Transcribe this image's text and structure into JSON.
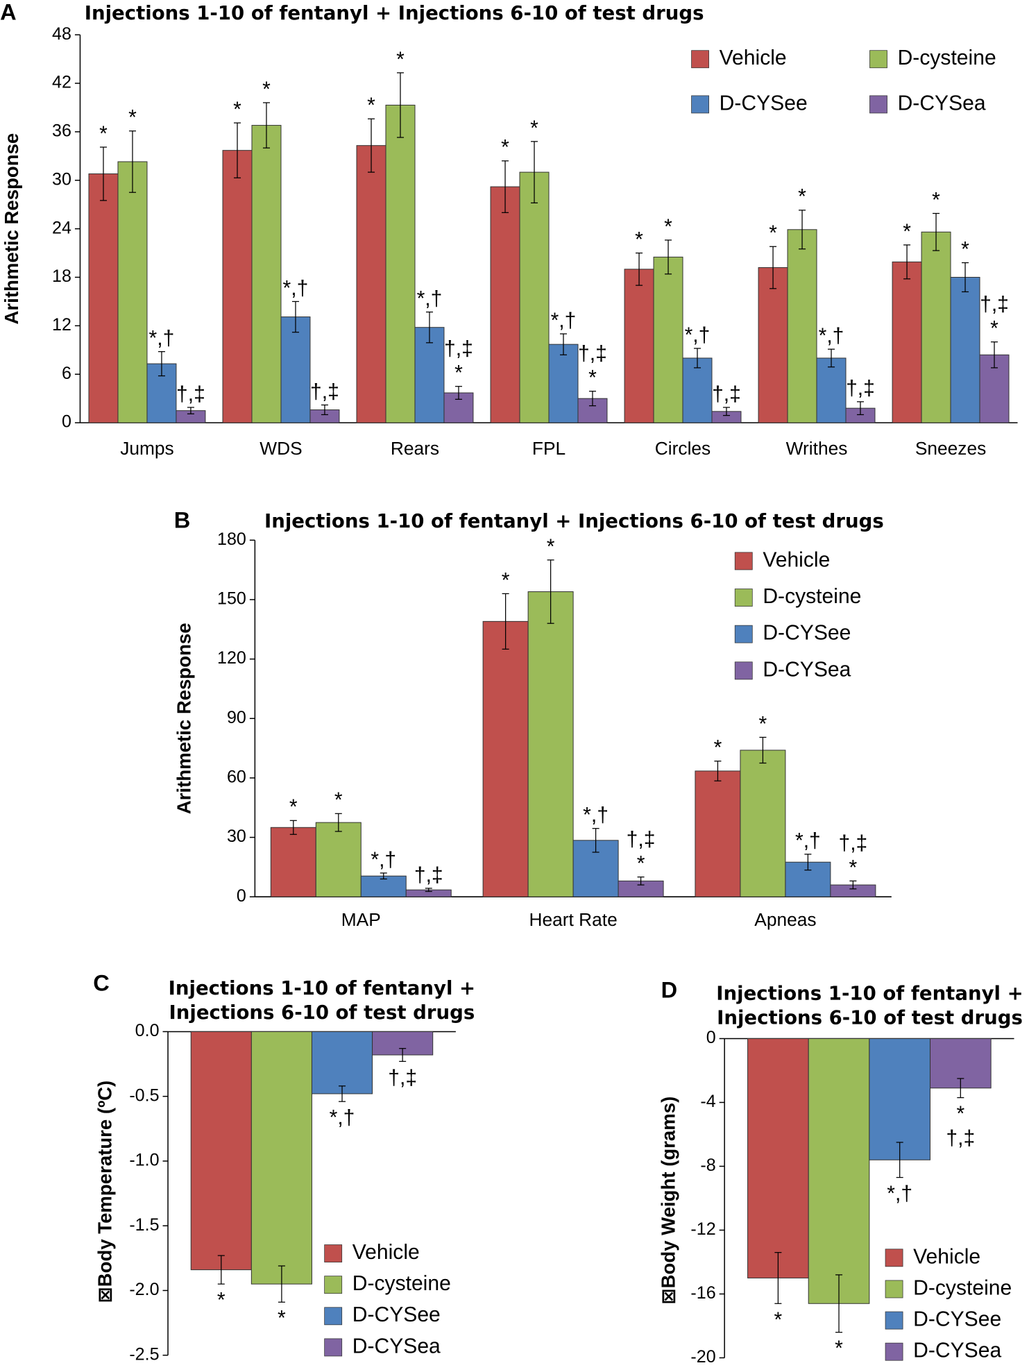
{
  "chart_data": [
    {
      "type": "bar",
      "panel_label": "A",
      "title": [
        "Injections 1-10 of fentanyl + Injections 6-10 of test drugs"
      ],
      "y_label": "Arithmetic Response",
      "categories": [
        "Jumps",
        "WDS",
        "Rears",
        "FPL",
        "Circles",
        "Writhes",
        "Sneezes"
      ],
      "ylim": [
        0,
        48
      ],
      "yticks": [
        0,
        6,
        12,
        18,
        24,
        30,
        36,
        42,
        48
      ],
      "legend": "upper right",
      "legend_columns": 2,
      "series": [
        {
          "name": "Vehicle",
          "color": "#c0504d",
          "values": [
            30.8,
            33.7,
            34.3,
            29.2,
            19.0,
            19.2,
            19.9
          ],
          "errors": [
            3.3,
            3.4,
            3.3,
            3.2,
            2.0,
            2.6,
            2.1
          ],
          "annotations": [
            [
              "*"
            ],
            [
              "*"
            ],
            [
              "*"
            ],
            [
              "*"
            ],
            [
              "*"
            ],
            [
              "*"
            ],
            [
              "*"
            ]
          ]
        },
        {
          "name": "D-cysteine",
          "color": "#9bbb59",
          "values": [
            32.3,
            36.8,
            39.3,
            31.0,
            20.5,
            23.9,
            23.6
          ],
          "errors": [
            3.8,
            2.8,
            4.0,
            3.8,
            2.1,
            2.4,
            2.3
          ],
          "annotations": [
            [
              "*"
            ],
            [
              "*"
            ],
            [
              "*"
            ],
            [
              "*"
            ],
            [
              "*"
            ],
            [
              "*"
            ],
            [
              "*"
            ]
          ]
        },
        {
          "name": "D-CYSee",
          "color": "#4f81bd",
          "values": [
            7.3,
            13.1,
            11.8,
            9.7,
            8.0,
            8.0,
            18.0
          ],
          "errors": [
            1.5,
            1.9,
            1.9,
            1.3,
            1.2,
            1.1,
            1.8
          ],
          "annotations": [
            [
              "*,†"
            ],
            [
              "*,†"
            ],
            [
              "*,†"
            ],
            [
              "*,†"
            ],
            [
              "*,†"
            ],
            [
              "*,†"
            ],
            [
              "*"
            ]
          ]
        },
        {
          "name": "D-CYSea",
          "color": "#8064a2",
          "values": [
            1.5,
            1.6,
            3.7,
            3.0,
            1.4,
            1.8,
            8.4
          ],
          "errors": [
            0.4,
            0.6,
            0.8,
            0.9,
            0.5,
            0.8,
            1.6
          ],
          "annotations": [
            [
              "†,‡"
            ],
            [
              "†,‡"
            ],
            [
              "†,‡",
              "*"
            ],
            [
              "†,‡",
              "*"
            ],
            [
              "†,‡"
            ],
            [
              "†,‡"
            ],
            [
              "†,‡",
              "*"
            ]
          ]
        }
      ]
    },
    {
      "type": "bar",
      "panel_label": "B",
      "title": [
        "Injections 1-10 of fentanyl + Injections 6-10 of test drugs"
      ],
      "y_label": "Arithmetic Response",
      "categories": [
        "MAP",
        "Heart Rate",
        "Apneas"
      ],
      "ylim": [
        0,
        180
      ],
      "yticks": [
        0,
        30,
        60,
        90,
        120,
        150,
        180
      ],
      "legend": "upper right",
      "legend_columns": 1,
      "series": [
        {
          "name": "Vehicle",
          "color": "#c0504d",
          "values": [
            35,
            139,
            63.5
          ],
          "errors": [
            3.5,
            14,
            5
          ],
          "annotations": [
            [
              "*"
            ],
            [
              "*"
            ],
            [
              "*"
            ]
          ]
        },
        {
          "name": "D-cysteine",
          "color": "#9bbb59",
          "values": [
            37.5,
            154,
            74
          ],
          "errors": [
            4.5,
            16,
            6.5
          ],
          "annotations": [
            [
              "*"
            ],
            [
              "*"
            ],
            [
              "*"
            ]
          ]
        },
        {
          "name": "D-CYSee",
          "color": "#4f81bd",
          "values": [
            10.5,
            28.5,
            17.5
          ],
          "errors": [
            1.5,
            6,
            4
          ],
          "annotations": [
            [
              "*,†"
            ],
            [
              "*,†"
            ],
            [
              "*,†"
            ]
          ]
        },
        {
          "name": "D-CYSea",
          "color": "#8064a2",
          "values": [
            3.5,
            8,
            6
          ],
          "errors": [
            0.8,
            2,
            2
          ],
          "annotations": [
            [
              "†,‡"
            ],
            [
              "†,‡",
              "*"
            ],
            [
              "†,‡",
              "*"
            ]
          ]
        }
      ]
    },
    {
      "type": "bar",
      "panel_label": "C",
      "title": [
        "Injections 1-10 of fentanyl +",
        "Injections 6-10 of test drugs"
      ],
      "y_label": "⊠Body Temperature (ºC)",
      "categories": [
        null
      ],
      "ylim": [
        -2.5,
        0
      ],
      "yticks": [
        {
          "value": 0,
          "label": "0.0"
        },
        -0.5,
        {
          "value": -1,
          "label": "-1.0"
        },
        -1.5,
        {
          "value": -2,
          "label": "-2.0"
        },
        -2.5
      ],
      "legend": "lower right",
      "legend_columns": 1,
      "series": [
        {
          "name": "Vehicle",
          "color": "#c0504d",
          "values": [
            -1.84
          ],
          "errors": [
            0.11
          ],
          "annotations": [
            [
              "*"
            ]
          ]
        },
        {
          "name": "D-cysteine",
          "color": "#9bbb59",
          "values": [
            -1.95
          ],
          "errors": [
            0.14
          ],
          "annotations": [
            [
              "*"
            ]
          ]
        },
        {
          "name": "D-CYSee",
          "color": "#4f81bd",
          "values": [
            -0.48
          ],
          "errors": [
            0.06
          ],
          "annotations": [
            [
              "*,†"
            ]
          ]
        },
        {
          "name": "D-CYSea",
          "color": "#8064a2",
          "values": [
            -0.18
          ],
          "errors": [
            0.05
          ],
          "annotations": [
            [
              "†,‡"
            ]
          ]
        }
      ]
    },
    {
      "type": "bar",
      "panel_label": "D",
      "title": [
        "Injections 1-10 of fentanyl +",
        "Injections 6-10 of test drugs"
      ],
      "y_label": "⊠Body Weight (grams)",
      "categories": [
        null
      ],
      "ylim": [
        -20,
        0
      ],
      "yticks": [
        0,
        -4,
        -8,
        -12,
        -16,
        -20
      ],
      "legend": "lower right",
      "legend_columns": 1,
      "series": [
        {
          "name": "Vehicle",
          "color": "#c0504d",
          "values": [
            -15.0
          ],
          "errors": [
            1.6
          ],
          "annotations": [
            [
              "*"
            ]
          ]
        },
        {
          "name": "D-cysteine",
          "color": "#9bbb59",
          "values": [
            -16.6
          ],
          "errors": [
            1.8
          ],
          "annotations": [
            [
              "*"
            ]
          ]
        },
        {
          "name": "D-CYSee",
          "color": "#4f81bd",
          "values": [
            -7.6
          ],
          "errors": [
            1.1
          ],
          "annotations": [
            [
              "*,†"
            ]
          ]
        },
        {
          "name": "D-CYSea",
          "color": "#8064a2",
          "values": [
            -3.1
          ],
          "errors": [
            0.6
          ],
          "annotations": [
            [
              "*",
              "†,‡"
            ]
          ]
        }
      ]
    }
  ]
}
